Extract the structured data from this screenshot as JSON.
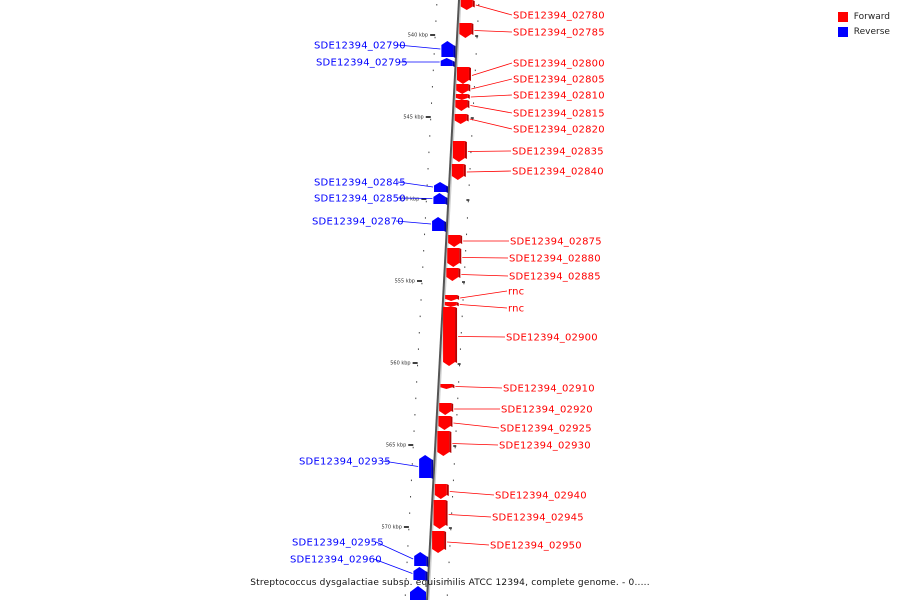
{
  "legend": {
    "forward_label": "Forward",
    "reverse_label": "Reverse",
    "forward_color": "#ff0000",
    "reverse_color": "#0000ff"
  },
  "caption": "Streptococcus dysgalactiae subsp. equisimilis ATCC 12394, complete genome. - 0.....",
  "ticks": [
    "540 kbp",
    "545 kbp",
    "550 kbp",
    "555 kbp",
    "560 kbp",
    "565 kbp",
    "570 kbp"
  ],
  "genes": [
    {
      "name": "SDE12394_02780",
      "strand": "forward"
    },
    {
      "name": "SDE12394_02785",
      "strand": "forward"
    },
    {
      "name": "SDE12394_02790",
      "strand": "reverse"
    },
    {
      "name": "SDE12394_02795",
      "strand": "reverse"
    },
    {
      "name": "SDE12394_02800",
      "strand": "forward"
    },
    {
      "name": "SDE12394_02805",
      "strand": "forward"
    },
    {
      "name": "SDE12394_02810",
      "strand": "forward"
    },
    {
      "name": "SDE12394_02815",
      "strand": "forward"
    },
    {
      "name": "SDE12394_02820",
      "strand": "forward"
    },
    {
      "name": "SDE12394_02835",
      "strand": "forward"
    },
    {
      "name": "SDE12394_02840",
      "strand": "forward"
    },
    {
      "name": "SDE12394_02845",
      "strand": "reverse"
    },
    {
      "name": "SDE12394_02850",
      "strand": "reverse"
    },
    {
      "name": "SDE12394_02870",
      "strand": "reverse"
    },
    {
      "name": "SDE12394_02875",
      "strand": "forward"
    },
    {
      "name": "SDE12394_02880",
      "strand": "forward"
    },
    {
      "name": "SDE12394_02885",
      "strand": "forward"
    },
    {
      "name": "rnc",
      "strand": "forward"
    },
    {
      "name": "rnc",
      "strand": "forward"
    },
    {
      "name": "SDE12394_02900",
      "strand": "forward"
    },
    {
      "name": "SDE12394_02910",
      "strand": "forward"
    },
    {
      "name": "SDE12394_02920",
      "strand": "forward"
    },
    {
      "name": "SDE12394_02925",
      "strand": "forward"
    },
    {
      "name": "SDE12394_02930",
      "strand": "forward"
    },
    {
      "name": "SDE12394_02935",
      "strand": "reverse"
    },
    {
      "name": "SDE12394_02940",
      "strand": "forward"
    },
    {
      "name": "SDE12394_02945",
      "strand": "forward"
    },
    {
      "name": "SDE12394_02950",
      "strand": "forward"
    },
    {
      "name": "SDE12394_02955",
      "strand": "reverse"
    },
    {
      "name": "SDE12394_02960",
      "strand": "reverse"
    }
  ]
}
